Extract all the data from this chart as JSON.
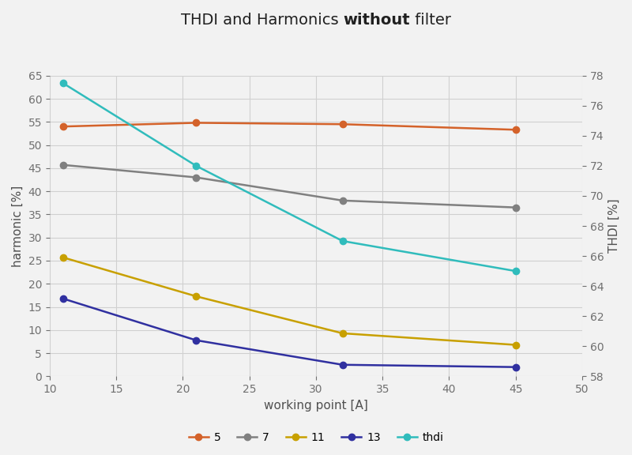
{
  "title_normal1": "THDI and Harmonics ",
  "title_bold": "without",
  "title_normal2": " filter",
  "xlabel": "working point [A]",
  "ylabel_left": "harmonic [%]",
  "ylabel_right": "THDI [%]",
  "x": [
    11,
    21,
    32,
    45
  ],
  "series_5": [
    54.0,
    54.8,
    54.5,
    53.3
  ],
  "series_7": [
    45.7,
    43.0,
    38.0,
    36.5
  ],
  "series_11": [
    25.7,
    17.3,
    9.3,
    6.8
  ],
  "series_13": [
    16.8,
    7.8,
    2.5,
    2.0
  ],
  "thdi_actual": [
    77.5,
    72.0,
    67.0,
    65.0
  ],
  "color_5": "#D4622A",
  "color_7": "#808080",
  "color_11": "#C8A000",
  "color_13": "#3030A0",
  "color_thdi": "#30BCBC",
  "xlim": [
    10,
    50
  ],
  "ylim_left": [
    0,
    65
  ],
  "ylim_right": [
    58,
    78
  ],
  "xticks": [
    10,
    15,
    20,
    25,
    30,
    35,
    40,
    45,
    50
  ],
  "yticks_left": [
    0,
    5,
    10,
    15,
    20,
    25,
    30,
    35,
    40,
    45,
    50,
    55,
    60,
    65
  ],
  "yticks_right": [
    58,
    60,
    62,
    64,
    66,
    68,
    70,
    72,
    74,
    76,
    78
  ],
  "bg_color": "#F2F2F2",
  "grid_color": "#D0D0D0",
  "marker_size": 6,
  "line_width": 1.8
}
